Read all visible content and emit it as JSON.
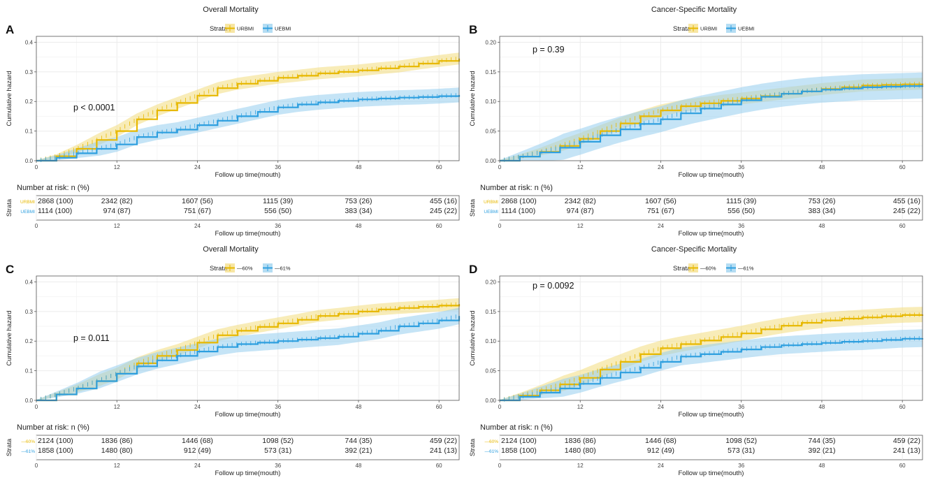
{
  "colors": {
    "series1": "#E7B800",
    "series2": "#2E9FDF",
    "band1": "#F3DC7E",
    "band2": "#96CEEE"
  },
  "chart_data": [
    {
      "label": "A",
      "type": "line",
      "title": "Overall Mortality",
      "legend_title": "Strata",
      "legend_position": "top",
      "xlabel": "Follow up time(mouth)",
      "ylabel": "Cumulative hazard",
      "xlim": [
        0,
        63
      ],
      "ylim": [
        0,
        0.42
      ],
      "xticks": [
        0,
        12,
        24,
        36,
        48,
        60
      ],
      "yticks": [
        0.0,
        0.1,
        0.2,
        0.3,
        0.4
      ],
      "ytick_labels": [
        "0.0",
        "0.1",
        "0.2",
        "0.3",
        "0.4"
      ],
      "pvalue": "p < 0.0001",
      "series": [
        {
          "name": "URBMI",
          "x": [
            0,
            3,
            6,
            9,
            12,
            15,
            18,
            21,
            24,
            27,
            30,
            33,
            36,
            39,
            42,
            45,
            48,
            51,
            54,
            57,
            60,
            63
          ],
          "y": [
            0,
            0.015,
            0.04,
            0.07,
            0.1,
            0.14,
            0.17,
            0.195,
            0.22,
            0.245,
            0.26,
            0.27,
            0.28,
            0.287,
            0.295,
            0.3,
            0.305,
            0.312,
            0.318,
            0.328,
            0.337,
            0.345
          ],
          "band": 0.02
        },
        {
          "name": "UEBMI",
          "x": [
            0,
            3,
            6,
            9,
            12,
            15,
            18,
            21,
            24,
            27,
            30,
            33,
            36,
            39,
            42,
            45,
            48,
            51,
            54,
            57,
            60,
            63
          ],
          "y": [
            0,
            0.01,
            0.025,
            0.04,
            0.055,
            0.08,
            0.095,
            0.105,
            0.12,
            0.135,
            0.15,
            0.165,
            0.18,
            0.19,
            0.197,
            0.202,
            0.207,
            0.21,
            0.213,
            0.215,
            0.218,
            0.222
          ],
          "band": 0.025
        }
      ],
      "risk_table": {
        "title": "Number at risk: n (%)",
        "strata_label": "Strata",
        "xlabel": "Follow up time(mouth)",
        "rows": [
          {
            "name": "URBMI",
            "cells": [
              "2868 (100)",
              "2342 (82)",
              "1607 (56)",
              "1115 (39)",
              "753 (26)",
              "455 (16)"
            ]
          },
          {
            "name": "UEBMI",
            "cells": [
              "1114 (100)",
              "974 (87)",
              "751 (67)",
              "556 (50)",
              "383 (34)",
              "245 (22)"
            ]
          }
        ]
      }
    },
    {
      "label": "B",
      "type": "line",
      "title": "Cancer-Specific Mortality",
      "legend_title": "Strata",
      "legend_position": "top",
      "xlabel": "Follow up time(mouth)",
      "ylabel": "Cumulative hazard",
      "xlim": [
        0,
        63
      ],
      "ylim": [
        0,
        0.21
      ],
      "xticks": [
        0,
        12,
        24,
        36,
        48,
        60
      ],
      "yticks": [
        0.0,
        0.05,
        0.1,
        0.15,
        0.2
      ],
      "ytick_labels": [
        "0.00",
        "0.05",
        "0.10",
        "0.15",
        "0.20"
      ],
      "pvalue": "p = 0.39",
      "series": [
        {
          "name": "URBMI",
          "x": [
            0,
            3,
            6,
            9,
            12,
            15,
            18,
            21,
            24,
            27,
            30,
            33,
            36,
            39,
            42,
            45,
            48,
            51,
            54,
            57,
            60,
            63
          ],
          "y": [
            0,
            0.007,
            0.015,
            0.025,
            0.037,
            0.05,
            0.063,
            0.075,
            0.085,
            0.092,
            0.097,
            0.101,
            0.105,
            0.109,
            0.113,
            0.117,
            0.121,
            0.124,
            0.127,
            0.128,
            0.129,
            0.13
          ],
          "band": 0.01
        },
        {
          "name": "UEBMI",
          "x": [
            0,
            3,
            6,
            9,
            12,
            15,
            18,
            21,
            24,
            27,
            30,
            33,
            36,
            39,
            42,
            45,
            48,
            51,
            54,
            57,
            60,
            63
          ],
          "y": [
            0,
            0.007,
            0.014,
            0.022,
            0.032,
            0.043,
            0.053,
            0.062,
            0.07,
            0.08,
            0.088,
            0.095,
            0.102,
            0.108,
            0.113,
            0.117,
            0.12,
            0.122,
            0.124,
            0.125,
            0.126,
            0.127
          ],
          "band": 0.022
        }
      ],
      "risk_table": {
        "title": "Number at risk: n (%)",
        "strata_label": "Strata",
        "xlabel": "Follow up time(mouth)",
        "rows": [
          {
            "name": "URBMI",
            "cells": [
              "2868 (100)",
              "2342 (82)",
              "1607 (56)",
              "1115 (39)",
              "753 (26)",
              "455 (16)"
            ]
          },
          {
            "name": "UEBMI",
            "cells": [
              "1114 (100)",
              "974 (87)",
              "751 (67)",
              "556 (50)",
              "383 (34)",
              "245 (22)"
            ]
          }
        ]
      }
    },
    {
      "label": "C",
      "type": "line",
      "title": "Overall Mortality",
      "legend_title": "Strata",
      "legend_position": "top",
      "xlabel": "Follow up time(mouth)",
      "ylabel": "Cumulative hazard",
      "xlim": [
        0,
        63
      ],
      "ylim": [
        0,
        0.42
      ],
      "xticks": [
        0,
        12,
        24,
        36,
        48,
        60
      ],
      "yticks": [
        0.0,
        0.1,
        0.2,
        0.3,
        0.4
      ],
      "ytick_labels": [
        "0.0",
        "0.1",
        "0.2",
        "0.3",
        "0.4"
      ],
      "pvalue": "p = 0.011",
      "series": [
        {
          "name": "—60%",
          "x": [
            0,
            3,
            6,
            9,
            12,
            15,
            18,
            21,
            24,
            27,
            30,
            33,
            36,
            39,
            42,
            45,
            48,
            51,
            54,
            57,
            60,
            63
          ],
          "y": [
            0,
            0.02,
            0.04,
            0.065,
            0.09,
            0.125,
            0.15,
            0.17,
            0.195,
            0.22,
            0.235,
            0.248,
            0.26,
            0.272,
            0.285,
            0.292,
            0.3,
            0.307,
            0.312,
            0.316,
            0.32,
            0.325
          ],
          "band": 0.02
        },
        {
          "name": "—61%",
          "x": [
            0,
            3,
            6,
            9,
            12,
            15,
            18,
            21,
            24,
            27,
            30,
            33,
            36,
            39,
            42,
            45,
            48,
            51,
            54,
            57,
            60,
            63
          ],
          "y": [
            0,
            0.02,
            0.04,
            0.065,
            0.09,
            0.115,
            0.135,
            0.15,
            0.165,
            0.18,
            0.19,
            0.195,
            0.2,
            0.205,
            0.21,
            0.215,
            0.225,
            0.235,
            0.25,
            0.26,
            0.27,
            0.285
          ],
          "band": 0.028
        }
      ],
      "risk_table": {
        "title": "Number at risk: n (%)",
        "strata_label": "Strata",
        "xlabel": "Follow up time(mouth)",
        "rows": [
          {
            "name": "—60%",
            "cells": [
              "2124 (100)",
              "1836 (86)",
              "1446 (68)",
              "1098 (52)",
              "744 (35)",
              "459 (22)"
            ]
          },
          {
            "name": "—61%",
            "cells": [
              "1858 (100)",
              "1480 (80)",
              "912 (49)",
              "573 (31)",
              "392 (21)",
              "241 (13)"
            ]
          }
        ]
      }
    },
    {
      "label": "D",
      "type": "line",
      "title": "Cancer-Specific Mortality",
      "legend_title": "Strata",
      "legend_position": "top",
      "xlabel": "Follow up time(mouth)",
      "ylabel": "Cumulative hazard",
      "xlim": [
        0,
        63
      ],
      "ylim": [
        0,
        0.21
      ],
      "xticks": [
        0,
        12,
        24,
        36,
        48,
        60
      ],
      "yticks": [
        0.0,
        0.05,
        0.1,
        0.15,
        0.2
      ],
      "ytick_labels": [
        "0.00",
        "0.05",
        "0.10",
        "0.15",
        "0.20"
      ],
      "pvalue": "p = 0.0092",
      "series": [
        {
          "name": "—60%",
          "x": [
            0,
            3,
            6,
            9,
            12,
            15,
            18,
            21,
            24,
            27,
            30,
            33,
            36,
            39,
            42,
            45,
            48,
            51,
            54,
            57,
            60,
            63
          ],
          "y": [
            0,
            0.008,
            0.017,
            0.027,
            0.038,
            0.052,
            0.065,
            0.078,
            0.088,
            0.095,
            0.101,
            0.107,
            0.113,
            0.12,
            0.126,
            0.131,
            0.135,
            0.138,
            0.14,
            0.142,
            0.144,
            0.145
          ],
          "band": 0.013
        },
        {
          "name": "—61%",
          "x": [
            0,
            3,
            6,
            9,
            12,
            15,
            18,
            21,
            24,
            27,
            30,
            33,
            36,
            39,
            42,
            45,
            48,
            51,
            54,
            57,
            60,
            63
          ],
          "y": [
            0,
            0.006,
            0.013,
            0.02,
            0.028,
            0.038,
            0.047,
            0.055,
            0.065,
            0.074,
            0.078,
            0.082,
            0.086,
            0.09,
            0.093,
            0.095,
            0.097,
            0.099,
            0.1,
            0.102,
            0.104,
            0.105
          ],
          "band": 0.015
        }
      ],
      "risk_table": {
        "title": "Number at risk: n (%)",
        "strata_label": "Strata",
        "xlabel": "Follow up time(mouth)",
        "rows": [
          {
            "name": "—60%",
            "cells": [
              "2124 (100)",
              "1836 (86)",
              "1446 (68)",
              "1098 (52)",
              "744 (35)",
              "459 (22)"
            ]
          },
          {
            "name": "—61%",
            "cells": [
              "1858 (100)",
              "1480 (80)",
              "912 (49)",
              "573 (31)",
              "392 (21)",
              "241 (13)"
            ]
          }
        ]
      }
    }
  ]
}
